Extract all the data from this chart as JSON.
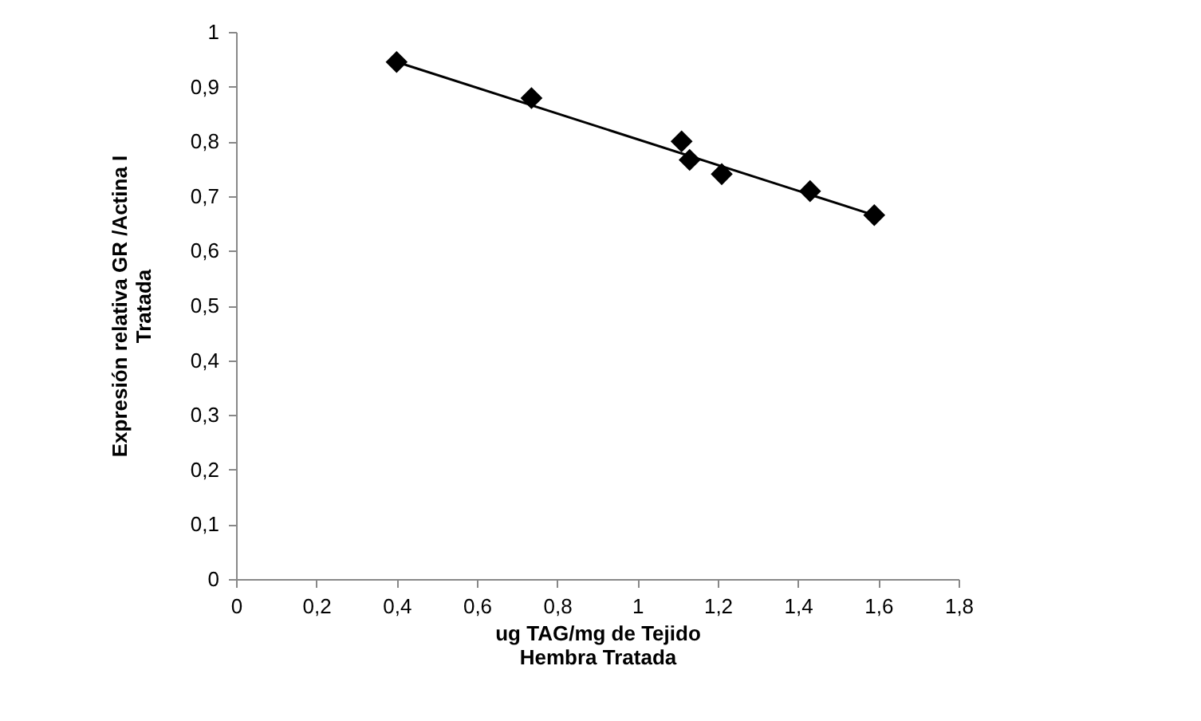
{
  "chart_data": {
    "type": "scatter",
    "xlabel": "ug TAG/mg de Tejido\nHembra Tratada",
    "ylabel": "Expresión relativa GR /Actina I\nTratada",
    "series": [
      {
        "type": "scatter",
        "color": "#000000",
        "marker": "diamond",
        "x": [
          0.4,
          0.736,
          1.11,
          1.13,
          1.21,
          1.43,
          1.59
        ],
        "values": [
          0.945,
          0.879,
          0.8,
          0.766,
          0.74,
          0.709,
          0.665
        ]
      },
      {
        "type": "line",
        "color": "#000000",
        "marker": "none",
        "x": [
          0.4,
          1.59
        ],
        "values": [
          0.945,
          0.665
        ]
      }
    ],
    "xlim": [
      0,
      1.8
    ],
    "ylim": [
      0,
      1
    ],
    "xticks": [
      0,
      {
        "value": 0.2,
        "label": "0,2"
      },
      {
        "value": 0.4,
        "label": "0,4"
      },
      {
        "value": 0.6,
        "label": "0,6"
      },
      {
        "value": 0.8,
        "label": "0,8"
      },
      1,
      {
        "value": 1.2,
        "label": "1,2"
      },
      {
        "value": 1.4,
        "label": "1,4"
      },
      {
        "value": 1.6,
        "label": "1,6"
      },
      {
        "value": 1.8,
        "label": "1,8"
      }
    ],
    "yticks": [
      0,
      {
        "value": 0.1,
        "label": "0,1"
      },
      {
        "value": 0.2,
        "label": "0,2"
      },
      {
        "value": 0.3,
        "label": "0,3"
      },
      {
        "value": 0.4,
        "label": "0,4"
      },
      {
        "value": 0.5,
        "label": "0,5"
      },
      {
        "value": 0.6,
        "label": "0,6"
      },
      {
        "value": 0.7,
        "label": "0,7"
      },
      {
        "value": 0.8,
        "label": "0,8"
      },
      {
        "value": 0.9,
        "label": "0,9"
      },
      1
    ],
    "grid": false
  }
}
